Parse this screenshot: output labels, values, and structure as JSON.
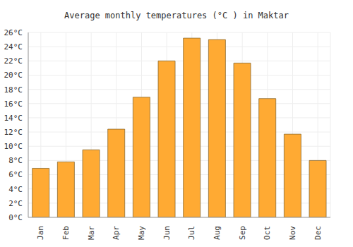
{
  "chart_data": {
    "type": "bar",
    "title": "Average monthly temperatures (°C ) in Maktar",
    "categories": [
      "Jan",
      "Feb",
      "Mar",
      "Apr",
      "May",
      "Jun",
      "Jul",
      "Aug",
      "Sep",
      "Oct",
      "Nov",
      "Dec"
    ],
    "values": [
      6.9,
      7.8,
      9.5,
      12.4,
      16.9,
      22.0,
      25.2,
      25.0,
      21.7,
      16.7,
      11.7,
      8.0
    ],
    "color": "#ffaa33",
    "ylim": [
      0,
      26
    ],
    "yticks": [
      {
        "value": 0,
        "label": "0°C"
      },
      {
        "value": 2,
        "label": "2°C"
      },
      {
        "value": 4,
        "label": "4°C"
      },
      {
        "value": 6,
        "label": "6°C"
      },
      {
        "value": 8,
        "label": "8°C"
      },
      {
        "value": 10,
        "label": "10°C"
      },
      {
        "value": 12,
        "label": "12°C"
      },
      {
        "value": 14,
        "label": "14°C"
      },
      {
        "value": 16,
        "label": "16°C"
      },
      {
        "value": 18,
        "label": "18°C"
      },
      {
        "value": 20,
        "label": "20°C"
      },
      {
        "value": 22,
        "label": "22°C"
      },
      {
        "value": 24,
        "label": "24°C"
      },
      {
        "value": 26,
        "label": "26°C"
      }
    ],
    "grid": true
  }
}
